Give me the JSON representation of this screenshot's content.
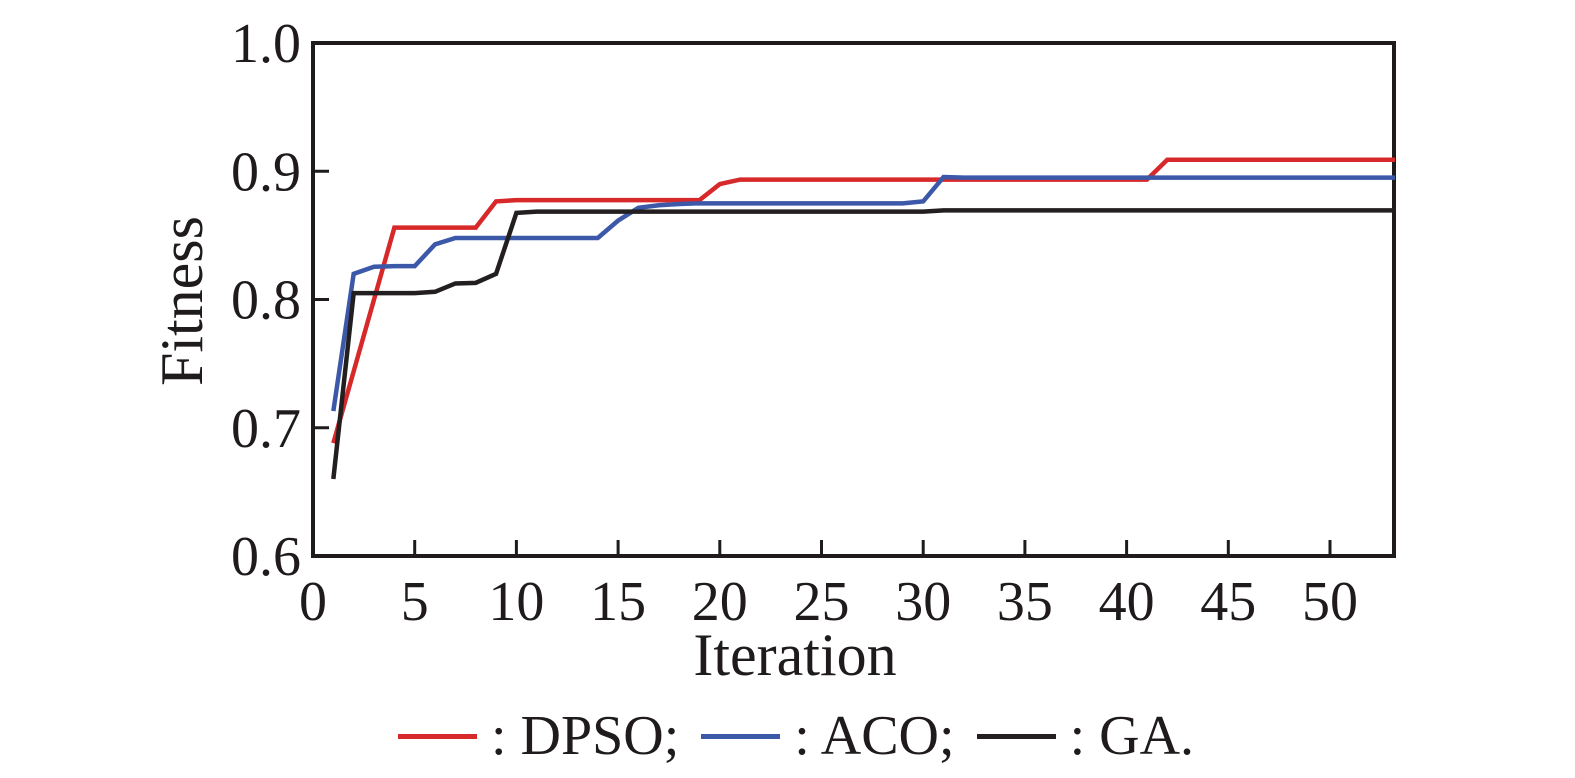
{
  "chart_data": {
    "type": "line",
    "title": "",
    "xlabel": "Iteration",
    "ylabel": "Fitness",
    "xlim": [
      0,
      53.2
    ],
    "ylim": [
      0.6,
      1.0
    ],
    "x_ticks": [
      0,
      5,
      10,
      15,
      20,
      25,
      30,
      35,
      40,
      45,
      50
    ],
    "y_ticks": [
      1.0,
      0.9,
      0.8,
      0.7,
      0.6
    ],
    "grid": false,
    "legend_position": "bottom-center",
    "frame_color": "#1f1b1c",
    "x": [
      1,
      2,
      3,
      4,
      5,
      6,
      7,
      8,
      9,
      10,
      11,
      12,
      13,
      14,
      15,
      16,
      17,
      18,
      19,
      20,
      21,
      22,
      23,
      24,
      25,
      26,
      27,
      28,
      29,
      30,
      31,
      32,
      33,
      34,
      35,
      36,
      37,
      38,
      39,
      40,
      41,
      42,
      43,
      44,
      45,
      46,
      47,
      48,
      49,
      50,
      53.2
    ],
    "series": [
      {
        "name": "DPSO",
        "color": "#d7282a",
        "y": [
          0.688,
          0.744,
          0.8,
          0.856,
          0.856,
          0.856,
          0.856,
          0.856,
          0.8765,
          0.8775,
          0.8775,
          0.8775,
          0.8775,
          0.8775,
          0.8775,
          0.8775,
          0.8775,
          0.8775,
          0.8775,
          0.89,
          0.8935,
          0.8935,
          0.8935,
          0.8935,
          0.8935,
          0.8935,
          0.8935,
          0.8935,
          0.8935,
          0.8935,
          0.8935,
          0.8935,
          0.8935,
          0.8935,
          0.8935,
          0.8935,
          0.8935,
          0.8935,
          0.8935,
          0.8935,
          0.8935,
          0.909,
          0.909,
          0.909,
          0.909,
          0.909,
          0.909,
          0.909,
          0.909,
          0.909,
          0.909
        ]
      },
      {
        "name": "ACO",
        "color": "#3c58a8",
        "y": [
          0.713,
          0.82,
          0.8255,
          0.826,
          0.826,
          0.843,
          0.848,
          0.848,
          0.848,
          0.848,
          0.848,
          0.848,
          0.848,
          0.848,
          0.8615,
          0.8715,
          0.8735,
          0.8745,
          0.875,
          0.875,
          0.875,
          0.875,
          0.875,
          0.875,
          0.875,
          0.875,
          0.875,
          0.875,
          0.875,
          0.8765,
          0.8955,
          0.895,
          0.895,
          0.895,
          0.895,
          0.895,
          0.895,
          0.895,
          0.895,
          0.895,
          0.895,
          0.895,
          0.895,
          0.895,
          0.895,
          0.895,
          0.895,
          0.895,
          0.895,
          0.895,
          0.895
        ]
      },
      {
        "name": "GA",
        "color": "#231f20",
        "y": [
          0.66,
          0.805,
          0.805,
          0.805,
          0.805,
          0.806,
          0.8125,
          0.813,
          0.82,
          0.8675,
          0.8685,
          0.8685,
          0.8685,
          0.8685,
          0.8685,
          0.8685,
          0.8685,
          0.8685,
          0.8685,
          0.8685,
          0.8685,
          0.8685,
          0.8685,
          0.8685,
          0.8685,
          0.8685,
          0.8685,
          0.8685,
          0.8685,
          0.8685,
          0.8695,
          0.8695,
          0.8695,
          0.8695,
          0.8695,
          0.8695,
          0.8695,
          0.8695,
          0.8695,
          0.8695,
          0.8695,
          0.8695,
          0.8695,
          0.8695,
          0.8695,
          0.8695,
          0.8695,
          0.8695,
          0.8695,
          0.8695,
          0.8695
        ]
      }
    ],
    "legend": [
      {
        "label": ": DPSO;",
        "color": "#d7282a"
      },
      {
        "label": ": ACO;",
        "color": "#3c58a8"
      },
      {
        "label": ": GA.",
        "color": "#231f20"
      }
    ]
  }
}
